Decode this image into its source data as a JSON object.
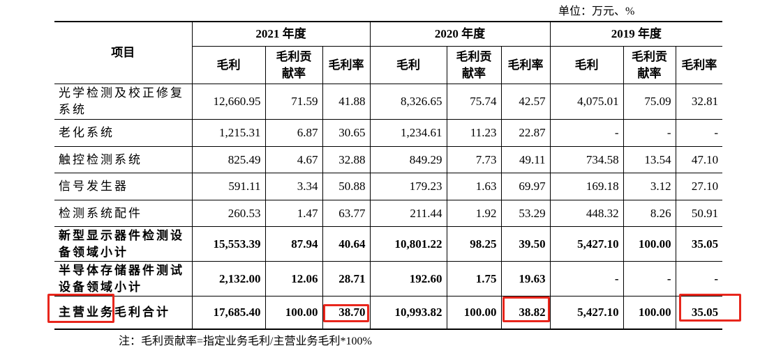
{
  "unit": "单位：万元、%",
  "table": {
    "header": {
      "item": "项目",
      "years": [
        "2021 年度",
        "2020 年度",
        "2019 年度"
      ],
      "columns": [
        "毛利",
        "毛利贡献率",
        "毛利率"
      ]
    },
    "rows": [
      {
        "label": "光学检测及校正修复系统",
        "cells": [
          "12,660.95",
          "71.59",
          "41.88",
          "8,326.65",
          "75.74",
          "42.57",
          "4,075.01",
          "75.09",
          "32.81"
        ]
      },
      {
        "label": "老化系统",
        "cells": [
          "1,215.31",
          "6.87",
          "30.65",
          "1,234.61",
          "11.23",
          "22.87",
          "-",
          "-",
          "-"
        ]
      },
      {
        "label": "触控检测系统",
        "cells": [
          "825.49",
          "4.67",
          "32.88",
          "849.29",
          "7.73",
          "49.11",
          "734.58",
          "13.54",
          "47.10"
        ]
      },
      {
        "label": "信号发生器",
        "cells": [
          "591.11",
          "3.34",
          "50.88",
          "179.23",
          "1.63",
          "69.97",
          "169.18",
          "3.12",
          "27.10"
        ]
      },
      {
        "label": "检测系统配件",
        "cells": [
          "260.53",
          "1.47",
          "63.77",
          "211.44",
          "1.92",
          "53.29",
          "448.32",
          "8.26",
          "50.91"
        ]
      },
      {
        "label": "新型显示器件检测设备领域小计",
        "bold": true,
        "cells": [
          "15,553.39",
          "87.94",
          "40.64",
          "10,801.22",
          "98.25",
          "39.50",
          "5,427.10",
          "100.00",
          "35.05"
        ]
      },
      {
        "label": "半导体存储器件测试设备领域小计",
        "bold": true,
        "cells": [
          "2,132.00",
          "12.06",
          "28.71",
          "192.60",
          "1.75",
          "19.63",
          "-",
          "-",
          "-"
        ]
      },
      {
        "label": "主营业务毛利合计",
        "bold": true,
        "cells": [
          "17,685.40",
          "100.00",
          "38.70",
          "10,993.82",
          "100.00",
          "38.82",
          "5,427.10",
          "100.00",
          "35.05"
        ]
      }
    ]
  },
  "note": "注：毛利贡献率=指定业务毛利/主营业务毛利*100%"
}
